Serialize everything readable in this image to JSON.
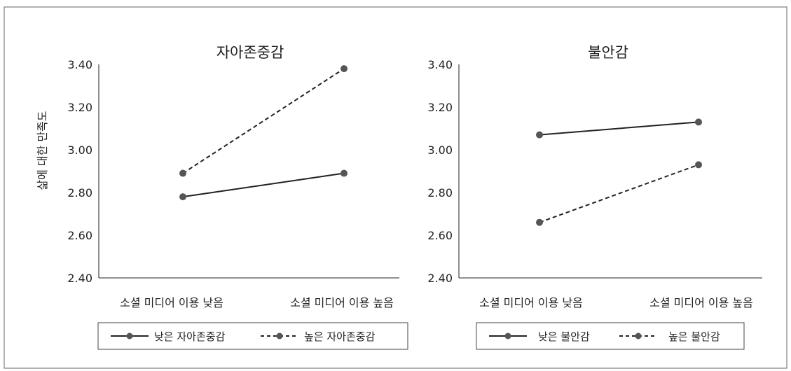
{
  "chart_data": [
    {
      "type": "line",
      "title": "자아존중감",
      "ylabel": "삶에 대한 만족도",
      "xlabel": "",
      "categories": [
        "소셜 미디어 이용 낮음",
        "소셜 미디어 이용 높음"
      ],
      "ylim": [
        2.4,
        3.4
      ],
      "yticks": [
        "2.40",
        "2.60",
        "2.80",
        "3.00",
        "3.20",
        "3.40"
      ],
      "grid": false,
      "legend_position": "bottom",
      "series": [
        {
          "name": "낮은 자아존중감",
          "values": [
            2.78,
            2.89
          ],
          "style": "solid"
        },
        {
          "name": "높은 자아존중감",
          "values": [
            2.89,
            3.38
          ],
          "style": "dashed"
        }
      ]
    },
    {
      "type": "line",
      "title": "불안감",
      "ylabel": "",
      "xlabel": "",
      "categories": [
        "소셜 미디어 이용 낮음",
        "소셜 미디어 이용 높음"
      ],
      "ylim": [
        2.4,
        3.4
      ],
      "yticks": [
        "2.40",
        "2.60",
        "2.80",
        "3.00",
        "3.20",
        "3.40"
      ],
      "grid": false,
      "legend_position": "bottom",
      "series": [
        {
          "name": "낮은 불안감",
          "values": [
            3.07,
            3.13
          ],
          "style": "solid"
        },
        {
          "name": "높은 불안감",
          "values": [
            2.66,
            2.93
          ],
          "style": "dashed"
        }
      ]
    }
  ],
  "colors": {
    "line": "#222222",
    "marker": "#555555",
    "frame": "#666666"
  }
}
